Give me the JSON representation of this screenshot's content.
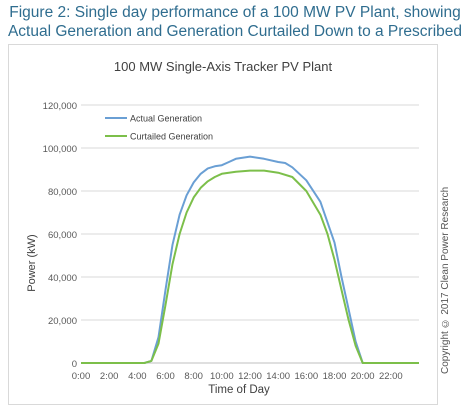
{
  "caption": "Figure 2: Single day performance of a 100 MW PV Plant, showing Actual Generation and Generation Curtailed Down to a Prescribed Forecast",
  "copyright": "Copyright © 2017 Clean Power Research",
  "chart_data": {
    "type": "line",
    "title": "100 MW Single-Axis Tracker PV Plant",
    "xlabel": "Time of Day",
    "ylabel": "Power (kW)",
    "ylim": [
      0,
      120000
    ],
    "yticks": [
      "0",
      "20,000",
      "40,000",
      "60,000",
      "80,000",
      "100,000",
      "120,000"
    ],
    "xlim": [
      0,
      24
    ],
    "xticks": [
      "0:00",
      "2:00",
      "4:00",
      "6:00",
      "8:00",
      "10:00",
      "12:00",
      "14:00",
      "16:00",
      "18:00",
      "20:00",
      "22:00"
    ],
    "grid": "horizontal",
    "legend_position": "top-left",
    "series": [
      {
        "name": "Actual Generation",
        "color": "#6a9fd4",
        "x": [
          0,
          4.5,
          5.0,
          5.5,
          6.0,
          6.5,
          7.0,
          7.5,
          8.0,
          8.5,
          9.0,
          9.5,
          10.0,
          10.5,
          11.0,
          12.0,
          13.0,
          14.0,
          14.5,
          15.0,
          16.0,
          17.0,
          18.0,
          18.5,
          19.0,
          19.5,
          20.0,
          24.0
        ],
        "values": [
          0,
          0,
          1000,
          12000,
          34000,
          55000,
          69000,
          78000,
          84000,
          88000,
          90500,
          91500,
          92000,
          93500,
          95000,
          96000,
          95000,
          93500,
          93000,
          91000,
          85000,
          75000,
          56000,
          40000,
          25000,
          10000,
          0,
          0
        ]
      },
      {
        "name": "Curtailed Generation",
        "color": "#7cbf4a",
        "x": [
          0,
          4.5,
          5.0,
          5.5,
          6.0,
          6.5,
          7.0,
          7.5,
          8.0,
          8.5,
          9.0,
          9.5,
          10.0,
          11.0,
          12.0,
          13.0,
          14.0,
          15.0,
          16.0,
          17.0,
          17.5,
          18.0,
          18.5,
          19.0,
          19.5,
          20.0,
          24.0
        ],
        "values": [
          0,
          0,
          1000,
          9000,
          27000,
          46000,
          60000,
          70000,
          77000,
          81500,
          84500,
          86500,
          88000,
          89000,
          89500,
          89500,
          88500,
          86500,
          80000,
          69000,
          60000,
          48000,
          34000,
          20000,
          8000,
          0,
          0
        ]
      }
    ]
  }
}
